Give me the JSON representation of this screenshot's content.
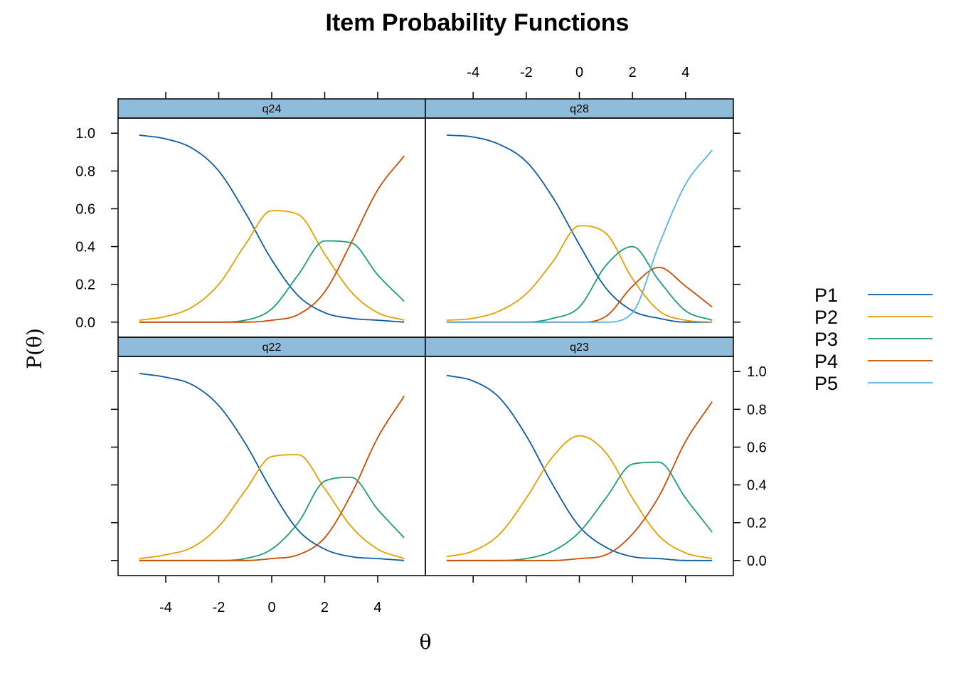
{
  "chart_data": {
    "type": "line",
    "title": "Item Probability Functions",
    "xlabel": "θ",
    "ylabel": "P(θ)",
    "xlim": [
      -5.8,
      5.8
    ],
    "ylim": [
      -0.08,
      1.08
    ],
    "x_ticks": [
      -4,
      -2,
      0,
      2,
      4
    ],
    "y_ticks": [
      0.0,
      0.2,
      0.4,
      0.6,
      0.8,
      1.0
    ],
    "y_tick_labels": [
      "0.0",
      "0.2",
      "0.4",
      "0.6",
      "0.8",
      "1.0"
    ],
    "x": [
      -5,
      -4,
      -3,
      -2,
      -1,
      0,
      1,
      2,
      3,
      4,
      5
    ],
    "legend": {
      "placement": "right",
      "entries": [
        {
          "name": "P1",
          "color": "#0C5DA5"
        },
        {
          "name": "P2",
          "color": "#E69F00"
        },
        {
          "name": "P3",
          "color": "#1B9E77"
        },
        {
          "name": "P4",
          "color": "#CC4C02"
        },
        {
          "name": "P5",
          "color": "#56B4E9"
        }
      ]
    },
    "panels": [
      {
        "name": "q22",
        "series": [
          {
            "name": "P1",
            "values": [
              0.99,
              0.97,
              0.93,
              0.82,
              0.62,
              0.37,
              0.16,
              0.06,
              0.02,
              0.01,
              0.0
            ]
          },
          {
            "name": "P2",
            "values": [
              0.01,
              0.03,
              0.07,
              0.18,
              0.37,
              0.55,
              0.56,
              0.38,
              0.18,
              0.06,
              0.01
            ]
          },
          {
            "name": "P3",
            "values": [
              0.0,
              0.0,
              0.0,
              0.0,
              0.01,
              0.06,
              0.2,
              0.42,
              0.44,
              0.27,
              0.12
            ]
          },
          {
            "name": "P4",
            "values": [
              0.0,
              0.0,
              0.0,
              0.0,
              0.0,
              0.01,
              0.03,
              0.12,
              0.35,
              0.65,
              0.87
            ]
          }
        ]
      },
      {
        "name": "q23",
        "series": [
          {
            "name": "P1",
            "values": [
              0.98,
              0.95,
              0.86,
              0.66,
              0.4,
              0.18,
              0.07,
              0.02,
              0.01,
              0.0,
              0.0
            ]
          },
          {
            "name": "P2",
            "values": [
              0.02,
              0.05,
              0.14,
              0.33,
              0.55,
              0.66,
              0.57,
              0.33,
              0.13,
              0.04,
              0.01
            ]
          },
          {
            "name": "P3",
            "values": [
              0.0,
              0.0,
              0.0,
              0.01,
              0.05,
              0.15,
              0.33,
              0.51,
              0.52,
              0.33,
              0.15
            ]
          },
          {
            "name": "P4",
            "values": [
              0.0,
              0.0,
              0.0,
              0.0,
              0.0,
              0.01,
              0.03,
              0.14,
              0.34,
              0.63,
              0.84
            ]
          }
        ]
      },
      {
        "name": "q24",
        "series": [
          {
            "name": "P1",
            "values": [
              0.99,
              0.97,
              0.92,
              0.8,
              0.58,
              0.33,
              0.14,
              0.05,
              0.02,
              0.01,
              0.0
            ]
          },
          {
            "name": "P2",
            "values": [
              0.01,
              0.03,
              0.08,
              0.2,
              0.41,
              0.59,
              0.57,
              0.36,
              0.16,
              0.05,
              0.01
            ]
          },
          {
            "name": "P3",
            "values": [
              0.0,
              0.0,
              0.0,
              0.0,
              0.01,
              0.07,
              0.25,
              0.43,
              0.42,
              0.25,
              0.11
            ]
          },
          {
            "name": "P4",
            "values": [
              0.0,
              0.0,
              0.0,
              0.0,
              0.0,
              0.01,
              0.04,
              0.16,
              0.42,
              0.7,
              0.88
            ]
          }
        ]
      },
      {
        "name": "q28",
        "series": [
          {
            "name": "P1",
            "values": [
              0.99,
              0.98,
              0.94,
              0.85,
              0.66,
              0.41,
              0.18,
              0.06,
              0.02,
              0.0,
              0.0
            ]
          },
          {
            "name": "P2",
            "values": [
              0.01,
              0.02,
              0.06,
              0.15,
              0.32,
              0.51,
              0.47,
              0.23,
              0.06,
              0.01,
              0.0
            ]
          },
          {
            "name": "P3",
            "values": [
              0.0,
              0.0,
              0.0,
              0.0,
              0.02,
              0.08,
              0.3,
              0.4,
              0.22,
              0.06,
              0.01
            ]
          },
          {
            "name": "P4",
            "values": [
              0.0,
              0.0,
              0.0,
              0.0,
              0.0,
              0.0,
              0.03,
              0.19,
              0.29,
              0.19,
              0.08
            ]
          },
          {
            "name": "P5",
            "values": [
              0.0,
              0.0,
              0.0,
              0.0,
              0.0,
              0.0,
              0.0,
              0.05,
              0.41,
              0.73,
              0.91
            ]
          }
        ]
      }
    ]
  }
}
